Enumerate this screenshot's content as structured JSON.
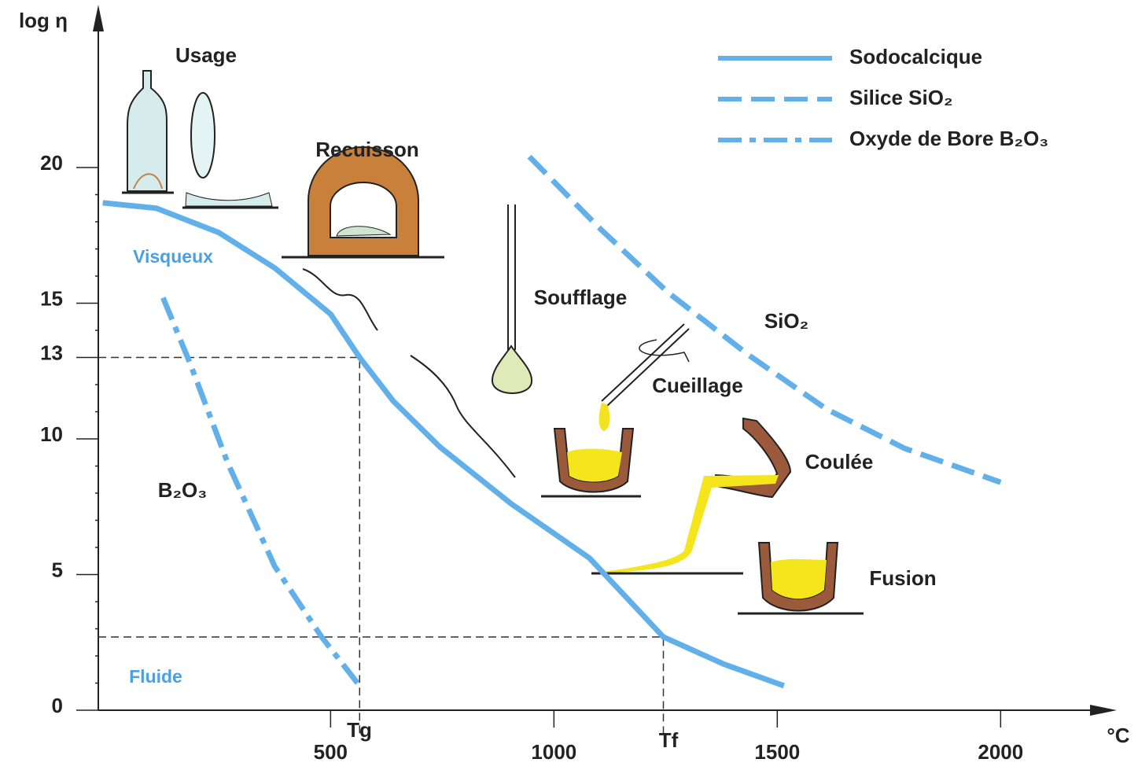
{
  "chart_data": {
    "type": "line",
    "xlim": [
      -20,
      2260
    ],
    "ylim": [
      0,
      26
    ],
    "xticks": [
      500,
      1000,
      1500,
      2000
    ],
    "yticks": [
      0,
      5,
      10,
      13,
      15,
      20
    ],
    "yminorticks": [
      1,
      2,
      3,
      4,
      6,
      7,
      8,
      9,
      11,
      12,
      14,
      16,
      17,
      18,
      19
    ],
    "y_label": "log η",
    "x_label": "°C",
    "legend": "upper right",
    "series": [
      {
        "name": "Sodocalcique",
        "color": "#62b0ea",
        "style": "solid",
        "x": [
          -10,
          110,
          250,
          375,
          500,
          565,
          640,
          745,
          905,
          1080,
          1245,
          1380,
          1515
        ],
        "values": [
          18.7,
          18.5,
          17.6,
          16.3,
          14.6,
          13.0,
          11.4,
          9.7,
          7.6,
          5.6,
          2.7,
          1.7,
          0.9
        ]
      },
      {
        "name": "Silice SiO₂",
        "color": "#62b0ea",
        "style": "dashed",
        "x": [
          945,
          1100,
          1255,
          1435,
          1610,
          1785,
          2000
        ],
        "values": [
          20.4,
          17.8,
          15.4,
          13.1,
          11.1,
          9.65,
          8.4
        ]
      },
      {
        "name": "Oxyde de Bore B₂O₃",
        "color": "#62b0ea",
        "style": "dashdot",
        "x": [
          125,
          185,
          270,
          375,
          480,
          565
        ],
        "values": [
          15.2,
          12.8,
          9.1,
          5.3,
          2.7,
          0.9
        ]
      }
    ],
    "reference_lines": [
      {
        "x": 565,
        "y": 13
      },
      {
        "x": 1245,
        "y": 2.7
      }
    ],
    "annotations": [
      "Usage",
      "Recuisson",
      "Soufflage",
      "Cueillage",
      "Coulée",
      "Fusion",
      "Visqueux",
      "Fluide",
      "SiO₂",
      "B₂O₃",
      "Tg",
      "Tf"
    ]
  }
}
